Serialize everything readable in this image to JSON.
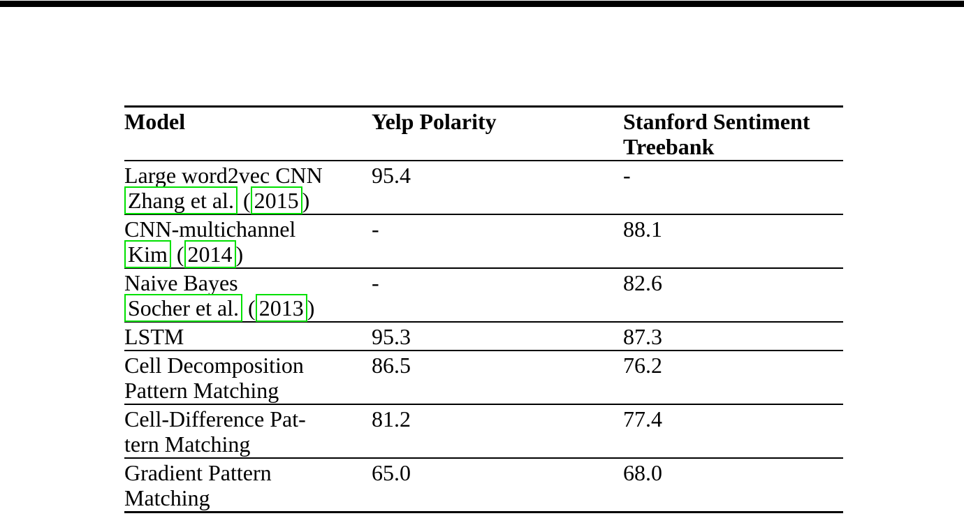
{
  "page": {
    "background": "#ffffff",
    "top_rule_color": "#000000",
    "text_color": "#000000"
  },
  "link_box_color": "#00e000",
  "citation_format": {
    "open": " (",
    "close": ")"
  },
  "table": {
    "columns": [
      {
        "label": "Model"
      },
      {
        "label": "Yelp Polarity"
      },
      {
        "label": "Stanford Sentiment\nTreebank"
      }
    ],
    "rows": [
      {
        "model": "Large word2vec CNN",
        "cite_authors": "Zhang et al.",
        "cite_year": "2015",
        "yelp": "95.4",
        "sst": "-"
      },
      {
        "model": "CNN-multichannel",
        "cite_authors": "Kim",
        "cite_year": "2014",
        "yelp": "-",
        "sst": "88.1"
      },
      {
        "model": "Naive Bayes",
        "cite_authors": "Socher et al.",
        "cite_year": "2013",
        "yelp": "-",
        "sst": "82.6"
      },
      {
        "model": "LSTM",
        "yelp": "95.3",
        "sst": "87.3"
      },
      {
        "model": "Cell Decomposition\nPattern Matching",
        "yelp": "86.5",
        "sst": "76.2"
      },
      {
        "model": "Cell-Difference Pat-\ntern Matching",
        "yelp": "81.2",
        "sst": "77.4"
      },
      {
        "model": "Gradient Pattern\nMatching",
        "yelp": "65.0",
        "sst": "68.0"
      }
    ]
  }
}
